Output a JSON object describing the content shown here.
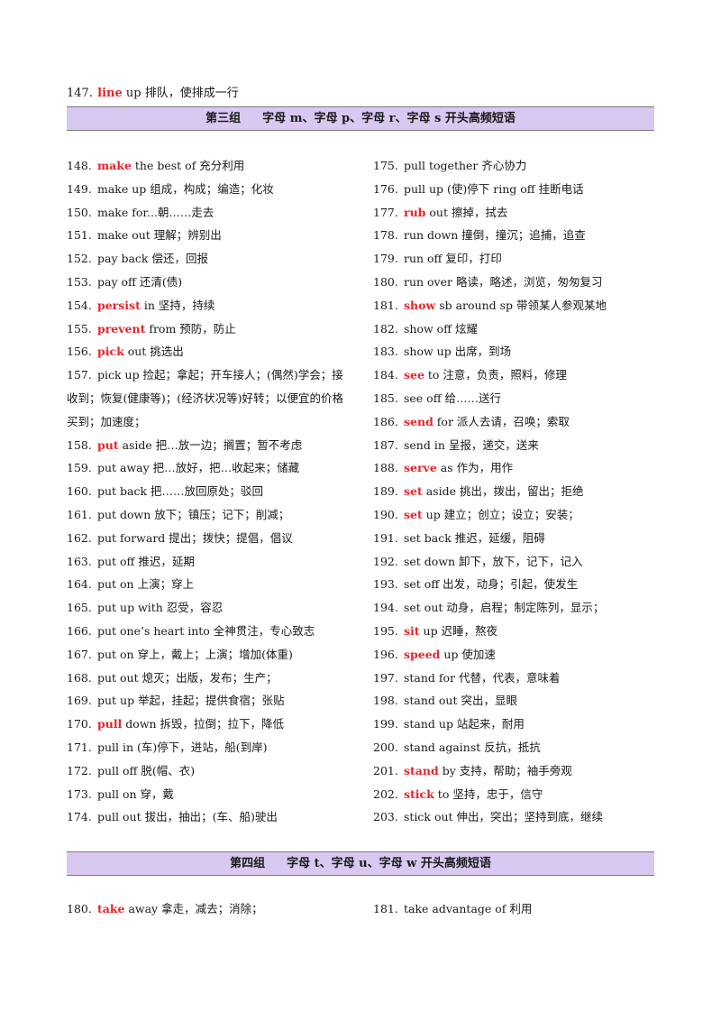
{
  "top_line": {
    "num": "147.",
    "kw": "line",
    "rest": " up 排队，使排成一行"
  },
  "group3": {
    "label": "第三组",
    "title": "字母 m、字母 p、字母 r、字母 s 开头高频短语"
  },
  "left_entries": [
    {
      "num": "148.",
      "kw": "make",
      "rest": " the best of 充分利用"
    },
    {
      "num": "149.",
      "kw": "",
      "rest": "make up 组成，构成；编造；化妆"
    },
    {
      "num": "150.",
      "kw": "",
      "rest": "make for...朝……走去"
    },
    {
      "num": "151.",
      "kw": "",
      "rest": "make out 理解；辨别出"
    },
    {
      "num": "152.",
      "kw": "",
      "rest": "pay back 偿还，回报"
    },
    {
      "num": "153.",
      "kw": "",
      "rest": "pay off 还清(债)"
    },
    {
      "num": "154.",
      "kw": "persist",
      "rest": " in 坚持，持续"
    },
    {
      "num": "155.",
      "kw": "prevent",
      "rest": " from 预防，防止"
    },
    {
      "num": "156.",
      "kw": "pick",
      "rest": " out 挑选出"
    },
    {
      "num": "157.",
      "kw": "",
      "rest": "pick up 捡起；拿起；开车接人；(偶然)学会；接收到；恢复(健康等)；(经济状况等)好转；以便宜的价格买到；加速度；",
      "wrap": true
    },
    {
      "num": "158.",
      "kw": "put",
      "rest": " aside 把…放一边；搁置；暂不考虑"
    },
    {
      "num": "159.",
      "kw": "",
      "rest": "put away 把…放好，把…收起来；储藏"
    },
    {
      "num": "160.",
      "kw": "",
      "rest": "put back 把……放回原处；驳回"
    },
    {
      "num": "161.",
      "kw": "",
      "rest": "put down 放下；镇压；记下；削减；"
    },
    {
      "num": "162.",
      "kw": "",
      "rest": "put forward 提出；拨快；提倡，倡议"
    },
    {
      "num": "163.",
      "kw": "",
      "rest": "put off 推迟，延期"
    },
    {
      "num": "164.",
      "kw": "",
      "rest": "put on 上演；穿上"
    },
    {
      "num": "165.",
      "kw": "",
      "rest": "put up with 忍受，容忍"
    },
    {
      "num": "166.",
      "kw": "",
      "rest": "put one’s heart into 全神贯注，专心致志"
    },
    {
      "num": "167.",
      "kw": "",
      "rest": "put on 穿上，戴上；上演；增加(体重)"
    },
    {
      "num": "168.",
      "kw": "",
      "rest": "put out 熄灭；出版，发布；生产；"
    },
    {
      "num": "169.",
      "kw": "",
      "rest": "put up 举起，挂起；提供食宿；张贴"
    },
    {
      "num": "170.",
      "kw": "pull",
      "rest": " down 拆毁，拉倒；拉下，降低"
    },
    {
      "num": "171.",
      "kw": "",
      "rest": "pull in (车)停下，进站，船(到岸)"
    },
    {
      "num": "172.",
      "kw": "",
      "rest": "pull off 脱(帽、衣)"
    },
    {
      "num": "173.",
      "kw": "",
      "rest": "pull on 穿，戴"
    },
    {
      "num": "174.",
      "kw": "",
      "rest": "pull out 拔出，抽出；(车、船)驶出"
    }
  ],
  "right_entries": [
    {
      "num": "175.",
      "kw": "",
      "rest": "pull together 齐心协力"
    },
    {
      "num": "176.",
      "kw": "",
      "rest": "pull up (使)停下 ring off 挂断电话"
    },
    {
      "num": "177.",
      "kw": "rub",
      "rest": " out 擦掉，拭去"
    },
    {
      "num": "178.",
      "kw": "",
      "rest": "run down 撞倒，撞沉；追捕，追查"
    },
    {
      "num": "179.",
      "kw": "",
      "rest": "run off 复印，打印"
    },
    {
      "num": "180.",
      "kw": "",
      "rest": "run over 略读，略述，浏览，匆匆复习"
    },
    {
      "num": "181.",
      "kw": "show",
      "rest": " sb around sp 带领某人参观某地"
    },
    {
      "num": "182.",
      "kw": "",
      "rest": "show off 炫耀"
    },
    {
      "num": "183.",
      "kw": "",
      "rest": "show up 出席，到场"
    },
    {
      "num": "184.",
      "kw": "see",
      "rest": " to 注意，负责，照料，修理"
    },
    {
      "num": "185.",
      "kw": "",
      "rest": "see off 给……送行"
    },
    {
      "num": "186.",
      "kw": "send",
      "rest": " for 派人去请，召唤；索取"
    },
    {
      "num": "187.",
      "kw": "",
      "rest": "send in 呈报，递交，送来"
    },
    {
      "num": "188.",
      "kw": "serve",
      "rest": " as 作为，用作"
    },
    {
      "num": "189.",
      "kw": "set",
      "rest": " aside 挑出，拨出，留出；拒绝"
    },
    {
      "num": "190.",
      "kw": "set",
      "rest": " up 建立；创立；设立；安装；"
    },
    {
      "num": "191.",
      "kw": "",
      "rest": "set back 推迟，延缓，阻碍"
    },
    {
      "num": "192.",
      "kw": "",
      "rest": "set down 卸下，放下，记下，记入"
    },
    {
      "num": "193.",
      "kw": "",
      "rest": "set off 出发，动身；引起，使发生"
    },
    {
      "num": "194.",
      "kw": "",
      "rest": "set out 动身，启程；制定陈列，显示；"
    },
    {
      "num": "195.",
      "kw": "sit",
      "rest": " up 迟睡，熬夜"
    },
    {
      "num": "196.",
      "kw": "speed",
      "rest": " up 使加速"
    },
    {
      "num": "197.",
      "kw": "",
      "rest": "stand for 代替，代表，意味着"
    },
    {
      "num": "198.",
      "kw": "",
      "rest": "stand out 突出，显眼"
    },
    {
      "num": "199.",
      "kw": "",
      "rest": "stand up 站起来，耐用"
    },
    {
      "num": "200.",
      "kw": "",
      "rest": "stand against 反抗，抵抗"
    },
    {
      "num": "201.",
      "kw": "stand",
      "rest": " by 支持，帮助；袖手旁观"
    },
    {
      "num": "202.",
      "kw": "stick",
      "rest": " to 坚持，忠于，信守"
    },
    {
      "num": "203.",
      "kw": "",
      "rest": "stick out 伸出，突出；坚持到底，继续"
    }
  ],
  "group4": {
    "label": "第四组",
    "title": "字母 t、字母 u、字母 w 开头高频短语"
  },
  "bottom_left": {
    "num": "180.",
    "kw": "take",
    "rest": " away 拿走，减去；消除；"
  },
  "bottom_right": {
    "num": "181.",
    "kw": "",
    "rest": "take advantage of 利用"
  }
}
